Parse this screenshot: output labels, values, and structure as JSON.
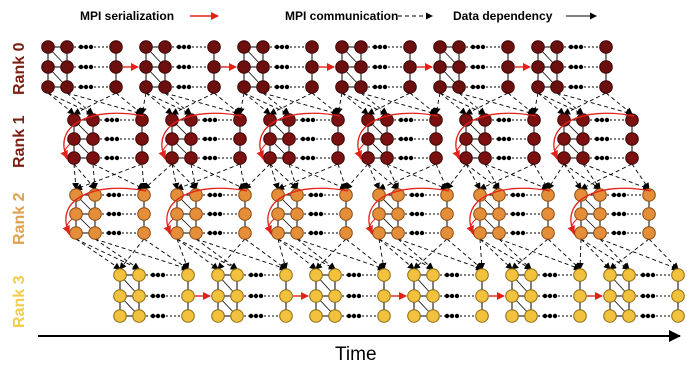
{
  "legend": {
    "serialization": "MPI serialization",
    "communication": "MPI communication",
    "dependency": "Data dependency"
  },
  "ranks": [
    {
      "label": "Rank 0",
      "color": "#6b0f0f",
      "label_color": "#7a1f12"
    },
    {
      "label": "Rank 1",
      "color": "#7a1010",
      "label_color": "#7a1f12"
    },
    {
      "label": "Rank 2",
      "color": "#e58e3a",
      "label_color": "#e0a050"
    },
    {
      "label": "Rank 3",
      "color": "#f2c23e",
      "label_color": "#f2cc4a"
    }
  ],
  "ellipsis": "●●●",
  "axis": {
    "label": "Time"
  },
  "colors": {
    "serialization": "#e32119",
    "communication": "#000000",
    "dependency": "#000000"
  }
}
